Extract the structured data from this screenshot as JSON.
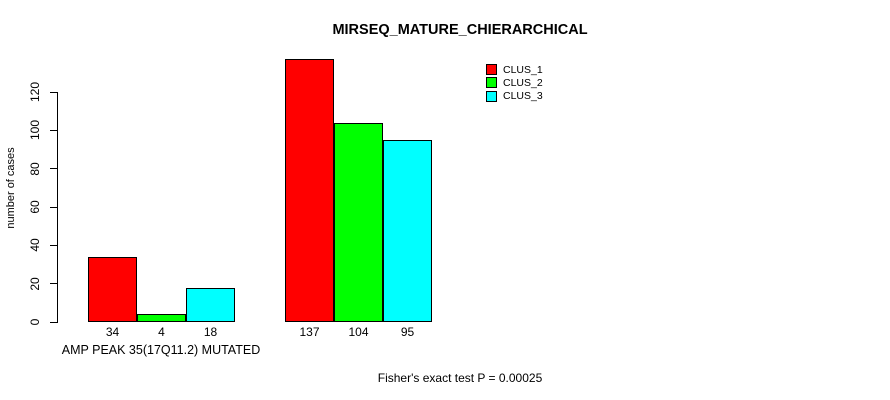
{
  "chart_data": {
    "type": "bar",
    "title": "MIRSEQ_MATURE_CHIERARCHICAL",
    "ylabel": "number of cases",
    "xlabel": "",
    "ylim": [
      0,
      120
    ],
    "yticks": [
      0,
      20,
      40,
      60,
      80,
      100,
      120
    ],
    "grid": false,
    "legend_position": "top-right",
    "categories": [
      "AMP PEAK 35(17Q11.2) MUTATED",
      ""
    ],
    "series": [
      {
        "name": "CLUS_1",
        "color": "#ff0000",
        "values": [
          34,
          137
        ]
      },
      {
        "name": "CLUS_2",
        "color": "#00ff00",
        "values": [
          4,
          104
        ]
      },
      {
        "name": "CLUS_3",
        "color": "#00ffff",
        "values": [
          18,
          95
        ]
      }
    ],
    "bar_labels": [
      [
        "34",
        "4",
        "18"
      ],
      [
        "137",
        "104",
        "95"
      ]
    ],
    "annotation": "Fisher's exact test P = 0.00025",
    "colors": {
      "background": "#ffffff",
      "axis": "#000000",
      "text": "#000000",
      "bar_border": "#000000"
    }
  }
}
